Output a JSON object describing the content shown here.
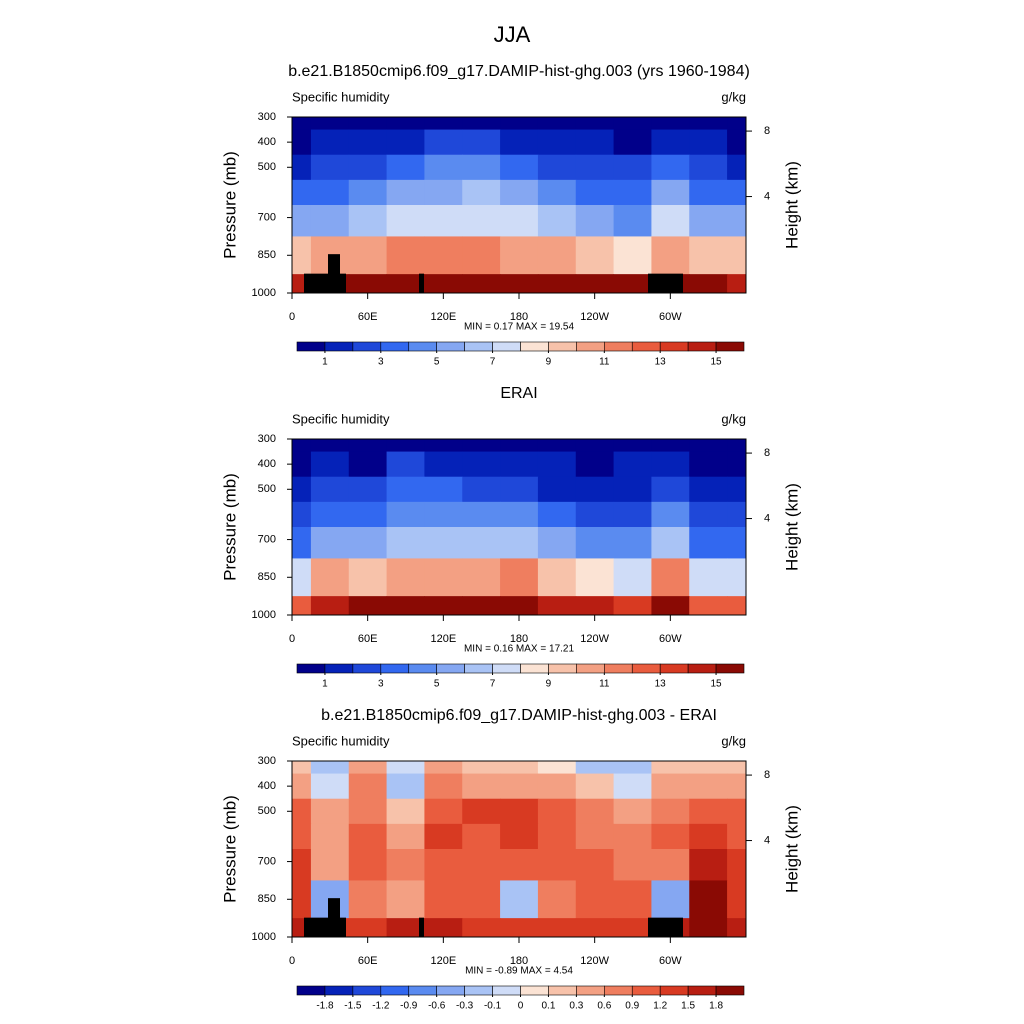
{
  "title": "JJA",
  "chart_data": [
    {
      "type": "contour",
      "title": "b.e21.B1850cmip6.f09_g17.DAMIP-hist-ghg.003 (yrs 1960-1984)",
      "subtitle_left": "Specific humidity",
      "subtitle_right": "g/kg",
      "ylabel": "Pressure (mb)",
      "y2label": "Height (km)",
      "stats": "MIN =   0.17  MAX =  19.54",
      "x": [
        0,
        30,
        60,
        90,
        120,
        150,
        180,
        210,
        240,
        270,
        300,
        330,
        360
      ],
      "pressure": [
        300,
        400,
        500,
        600,
        700,
        850,
        1000
      ],
      "z": [
        [
          0.3,
          0.4,
          0.5,
          0.7,
          0.9,
          0.9,
          0.7,
          0.5,
          0.4,
          0.4,
          0.7,
          0.4,
          0.3
        ],
        [
          0.8,
          1.0,
          1.3,
          1.8,
          2.1,
          2.2,
          1.8,
          1.3,
          1.0,
          0.9,
          1.6,
          1.0,
          0.8
        ],
        [
          1.8,
          2.2,
          2.8,
          3.6,
          4.0,
          4.1,
          3.6,
          2.8,
          2.2,
          2.0,
          3.2,
          2.2,
          1.8
        ],
        [
          3.2,
          3.8,
          4.6,
          5.4,
          5.9,
          6.0,
          5.4,
          4.5,
          3.6,
          3.3,
          5.0,
          3.6,
          3.2
        ],
        [
          5.0,
          5.8,
          6.6,
          7.3,
          7.8,
          7.8,
          7.2,
          6.3,
          5.2,
          4.9,
          7.0,
          5.3,
          5.0
        ],
        [
          9.0,
          10.0,
          10.5,
          11.0,
          11.5,
          11.3,
          10.8,
          10.0,
          9.0,
          8.8,
          10.8,
          9.4,
          9.0
        ],
        [
          14.5,
          15.5,
          16.5,
          17.0,
          17.0,
          16.8,
          16.5,
          16.0,
          15.5,
          15.0,
          16.5,
          15.0,
          14.5
        ]
      ],
      "levels": [
        1,
        2,
        3,
        4,
        5,
        6,
        7,
        8,
        9,
        10,
        11,
        12,
        13,
        14,
        15
      ],
      "colorbar_ticks": [
        1,
        3,
        5,
        7,
        9,
        11,
        13,
        15
      ],
      "colors": [
        "#01008a",
        "#0522b8",
        "#1f48d9",
        "#3268f0",
        "#5a8bf0",
        "#85a7f2",
        "#a9c3f5",
        "#cfdcf7",
        "#fbe3d4",
        "#f7c2aa",
        "#f3a083",
        "#ef7e5f",
        "#e95c3e",
        "#d83a22",
        "#b81e12",
        "#8a0a04"
      ],
      "xlim": [
        0,
        360
      ],
      "xticks": [
        0,
        {
          "value": 60,
          "label": "60E"
        },
        {
          "value": 120,
          "label": "120E"
        },
        180,
        {
          "value": 240,
          "label": "120W"
        },
        {
          "value": 300,
          "label": "60W"
        }
      ],
      "ylim": [
        1000,
        300
      ],
      "yticks": [
        300,
        400,
        500,
        700,
        850,
        1000
      ],
      "y2ticks": [
        4,
        8
      ],
      "topography": true
    },
    {
      "type": "contour",
      "title": "ERAI",
      "subtitle_left": "Specific humidity",
      "subtitle_right": "g/kg",
      "ylabel": "Pressure (mb)",
      "y2label": "Height (km)",
      "stats": "MIN =   0.16  MAX =  17.21",
      "x": [
        0,
        30,
        60,
        90,
        120,
        150,
        180,
        210,
        240,
        270,
        300,
        330,
        360
      ],
      "pressure": [
        300,
        400,
        500,
        600,
        700,
        850,
        1000
      ],
      "z": [
        [
          0.2,
          0.5,
          0.3,
          0.7,
          0.6,
          0.7,
          0.6,
          0.5,
          0.5,
          0.6,
          0.6,
          0.3,
          0.2
        ],
        [
          0.5,
          1.1,
          0.8,
          2.0,
          1.5,
          1.7,
          1.4,
          1.1,
          0.9,
          1.0,
          1.2,
          0.7,
          0.5
        ],
        [
          1.0,
          2.0,
          2.0,
          3.5,
          3.0,
          2.9,
          2.4,
          1.8,
          1.6,
          1.6,
          2.5,
          1.4,
          1.0
        ],
        [
          2.2,
          3.4,
          3.6,
          4.9,
          4.7,
          4.9,
          4.2,
          3.5,
          2.8,
          2.7,
          4.0,
          2.4,
          2.2
        ],
        [
          3.8,
          5.4,
          5.7,
          6.8,
          6.8,
          6.8,
          6.3,
          5.4,
          4.3,
          4.2,
          6.2,
          3.7,
          3.8
        ],
        [
          7.7,
          10.6,
          9.8,
          10.6,
          10.4,
          10.4,
          11.0,
          9.2,
          8.0,
          7.8,
          11.3,
          7.5,
          7.7
        ],
        [
          12.9,
          14.3,
          15.1,
          15.5,
          15.4,
          15.4,
          15.3,
          14.7,
          14.2,
          13.6,
          15.0,
          12.8,
          12.9
        ]
      ],
      "levels": [
        1,
        2,
        3,
        4,
        5,
        6,
        7,
        8,
        9,
        10,
        11,
        12,
        13,
        14,
        15
      ],
      "colorbar_ticks": [
        1,
        3,
        5,
        7,
        9,
        11,
        13,
        15
      ],
      "colors": [
        "#01008a",
        "#0522b8",
        "#1f48d9",
        "#3268f0",
        "#5a8bf0",
        "#85a7f2",
        "#a9c3f5",
        "#cfdcf7",
        "#fbe3d4",
        "#f7c2aa",
        "#f3a083",
        "#ef7e5f",
        "#e95c3e",
        "#d83a22",
        "#b81e12",
        "#8a0a04"
      ],
      "xlim": [
        0,
        360
      ],
      "xticks": [
        0,
        {
          "value": 60,
          "label": "60E"
        },
        {
          "value": 120,
          "label": "120E"
        },
        180,
        {
          "value": 240,
          "label": "120W"
        },
        {
          "value": 300,
          "label": "60W"
        }
      ],
      "ylim": [
        1000,
        300
      ],
      "yticks": [
        300,
        400,
        500,
        700,
        850,
        1000
      ],
      "y2ticks": [
        4,
        8
      ],
      "topography": false
    },
    {
      "type": "contour",
      "title": "b.e21.B1850cmip6.f09_g17.DAMIP-hist-ghg.003 - ERAI",
      "subtitle_left": "Specific humidity",
      "subtitle_right": "g/kg",
      "ylabel": "Pressure (mb)",
      "y2label": "Height (km)",
      "stats": "MIN =  -0.89  MAX =   4.54",
      "x": [
        0,
        30,
        60,
        90,
        120,
        150,
        180,
        210,
        240,
        270,
        300,
        330,
        360
      ],
      "pressure": [
        300,
        400,
        500,
        600,
        700,
        850,
        1000
      ],
      "z": [
        [
          0.1,
          -0.2,
          0.3,
          -0.1,
          0.4,
          0.2,
          0.1,
          0.05,
          -0.2,
          -0.3,
          0.2,
          0.1,
          0.1
        ],
        [
          0.4,
          -0.1,
          0.6,
          -0.3,
          0.7,
          0.5,
          0.4,
          0.3,
          0.1,
          -0.1,
          0.5,
          0.3,
          0.4
        ],
        [
          0.9,
          0.3,
          0.8,
          0.1,
          1.0,
          1.2,
          1.3,
          1.1,
          0.7,
          0.5,
          0.8,
          0.9,
          0.9
        ],
        [
          1.1,
          0.5,
          1.0,
          0.5,
          1.2,
          1.1,
          1.2,
          1.0,
          0.8,
          0.6,
          1.0,
          1.3,
          1.1
        ],
        [
          1.2,
          0.4,
          0.9,
          0.6,
          1.0,
          1.0,
          0.9,
          0.9,
          0.9,
          0.7,
          0.8,
          1.6,
          1.2
        ],
        [
          1.3,
          -0.6,
          0.7,
          0.4,
          1.1,
          0.9,
          -0.2,
          0.8,
          1.0,
          1.0,
          -0.5,
          1.9,
          1.3
        ],
        [
          1.6,
          1.2,
          1.4,
          1.5,
          1.6,
          1.4,
          1.2,
          1.3,
          1.3,
          1.4,
          1.5,
          2.2,
          1.6
        ]
      ],
      "levels": [
        -1.8,
        -1.5,
        -1.2,
        -0.9,
        -0.6,
        -0.3,
        -0.1,
        0,
        0.1,
        0.3,
        0.6,
        0.9,
        1.2,
        1.5,
        1.8
      ],
      "colorbar_ticks": [
        -1.8,
        -1.5,
        -1.2,
        -0.9,
        -0.6,
        -0.3,
        -0.1,
        0,
        0.1,
        0.3,
        0.6,
        0.9,
        1.2,
        1.5,
        1.8
      ],
      "colors": [
        "#01008a",
        "#0522b8",
        "#1f48d9",
        "#3268f0",
        "#5a8bf0",
        "#85a7f2",
        "#a9c3f5",
        "#cfdcf7",
        "#fbe3d4",
        "#f7c2aa",
        "#f3a083",
        "#ef7e5f",
        "#e95c3e",
        "#d83a22",
        "#b81e12",
        "#8a0a04"
      ],
      "xlim": [
        0,
        360
      ],
      "xticks": [
        0,
        {
          "value": 60,
          "label": "60E"
        },
        {
          "value": 120,
          "label": "120E"
        },
        180,
        {
          "value": 240,
          "label": "120W"
        },
        {
          "value": 300,
          "label": "60W"
        }
      ],
      "ylim": [
        1000,
        300
      ],
      "yticks": [
        300,
        400,
        500,
        700,
        850,
        1000
      ],
      "y2ticks": [
        4,
        8
      ],
      "topography": true
    }
  ]
}
